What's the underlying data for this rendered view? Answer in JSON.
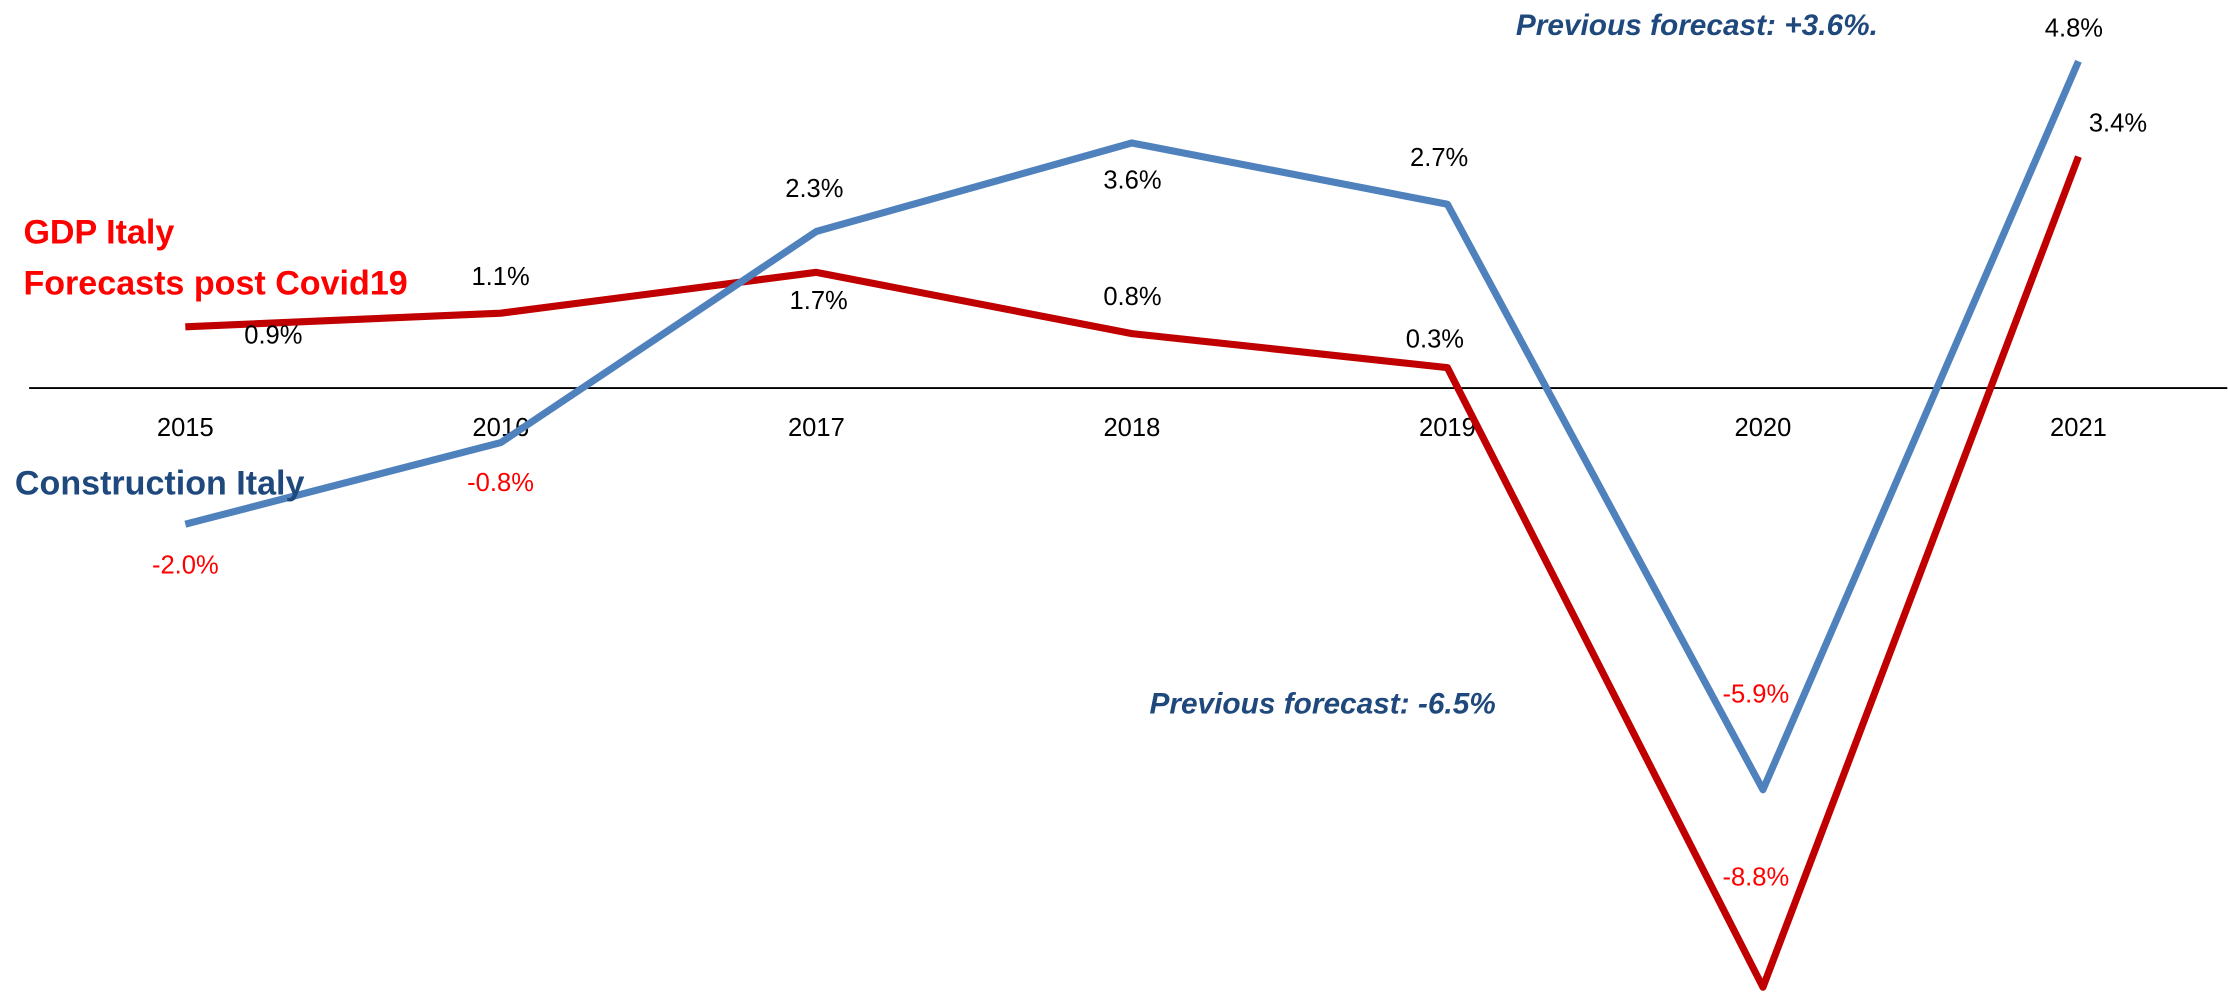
{
  "chart_data": {
    "type": "line",
    "categories": [
      "2015",
      "2016",
      "2017",
      "2018",
      "2019",
      "2020",
      "2021"
    ],
    "series": [
      {
        "name": "GDP Italy",
        "color": "#c00000",
        "label_color": "#ff0000",
        "values": [
          0.9,
          1.1,
          1.7,
          0.8,
          0.3,
          -8.8,
          3.4
        ],
        "value_labels": [
          "0.9%",
          "1.1%",
          "1.7%",
          "0.8%",
          "0.3%",
          "-8.8%",
          "3.4%"
        ]
      },
      {
        "name": "Construction Italy",
        "color": "#4f81bd",
        "label_color": "#1f497d",
        "values": [
          -2.0,
          -0.8,
          2.3,
          3.6,
          2.7,
          -5.9,
          4.8
        ],
        "value_labels": [
          "-2.0%",
          "-0.8%",
          "2.3%",
          "3.6%",
          "2.7%",
          "-5.9%",
          "4.8%"
        ]
      }
    ],
    "annotations": [
      "Forecasts post Covid19",
      "Previous forecast: +3.6%.",
      "Previous forecast: -6.5%"
    ],
    "ylim": [
      -8.9,
      5.7
    ],
    "negative_label_color": "#ff0000",
    "grid": false
  }
}
